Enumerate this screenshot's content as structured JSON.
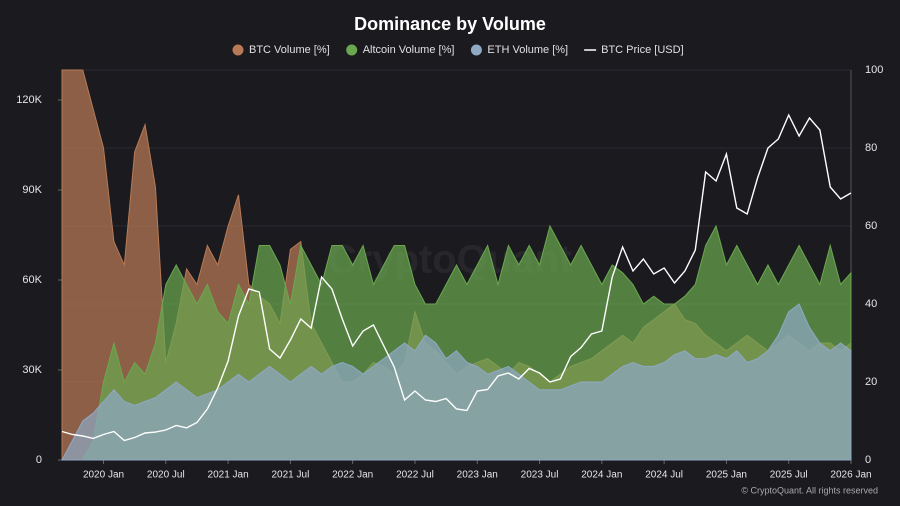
{
  "chart_data": {
    "type": "area",
    "title": "Dominance by Volume",
    "watermark": "CryptoQuant",
    "footer": "© CryptoQuant. All rights reserved",
    "x": [
      "2019-09",
      "2019-10",
      "2019-11",
      "2019-12",
      "2020-01",
      "2020-02",
      "2020-03",
      "2020-04",
      "2020-05",
      "2020-06",
      "2020-07",
      "2020-08",
      "2020-09",
      "2020-10",
      "2020-11",
      "2020-12",
      "2021-01",
      "2021-02",
      "2021-03",
      "2021-04",
      "2021-05",
      "2021-06",
      "2021-07",
      "2021-08",
      "2021-09",
      "2021-10",
      "2021-11",
      "2021-12",
      "2022-01",
      "2022-02",
      "2022-03",
      "2022-04",
      "2022-05",
      "2022-06",
      "2022-07",
      "2022-08",
      "2022-09",
      "2022-10",
      "2022-11",
      "2022-12",
      "2023-01",
      "2023-02",
      "2023-03",
      "2023-04",
      "2023-05",
      "2023-06",
      "2023-07",
      "2023-08",
      "2023-09",
      "2023-10",
      "2023-11",
      "2023-12",
      "2024-01",
      "2024-02",
      "2024-03",
      "2024-04",
      "2024-05",
      "2024-06",
      "2024-07",
      "2024-08",
      "2024-09",
      "2024-10",
      "2024-11",
      "2024-12",
      "2025-01",
      "2025-02",
      "2025-03",
      "2025-04",
      "2025-05",
      "2025-06",
      "2025-07",
      "2025-08",
      "2025-09",
      "2025-10",
      "2025-11",
      "2025-12",
      "2026-01"
    ],
    "xlim": [
      "2019-09",
      "2026-01"
    ],
    "xticks": [
      {
        "value": "2020-01",
        "label": "2020 Jan"
      },
      {
        "value": "2020-07",
        "label": "2020 Jul"
      },
      {
        "value": "2021-01",
        "label": "2021 Jan"
      },
      {
        "value": "2021-07",
        "label": "2021 Jul"
      },
      {
        "value": "2022-01",
        "label": "2022 Jan"
      },
      {
        "value": "2022-07",
        "label": "2022 Jul"
      },
      {
        "value": "2023-01",
        "label": "2023 Jan"
      },
      {
        "value": "2023-07",
        "label": "2023 Jul"
      },
      {
        "value": "2024-01",
        "label": "2024 Jan"
      },
      {
        "value": "2024-07",
        "label": "2024 Jul"
      },
      {
        "value": "2025-01",
        "label": "2025 Jan"
      },
      {
        "value": "2025-07",
        "label": "2025 Jul"
      },
      {
        "value": "2026-01",
        "label": "2026 Jan"
      }
    ],
    "ylim": [
      0,
      130000
    ],
    "yticks": [
      0,
      {
        "value": 30000,
        "label": "30K"
      },
      {
        "value": 60000,
        "label": "60K"
      },
      {
        "value": 90000,
        "label": "90K"
      },
      {
        "value": 120000,
        "label": "120K"
      }
    ],
    "y2lim": [
      0,
      100
    ],
    "y2ticks": [
      0,
      20,
      40,
      60,
      80,
      100
    ],
    "grid": true,
    "legend": "top",
    "series": [
      {
        "name": "BTC Volume [%]",
        "color": "#b87a56",
        "type": "area",
        "axis": "y2",
        "values": [
          100,
          100,
          100,
          90,
          80,
          56,
          50,
          79,
          86,
          70,
          25,
          35,
          49,
          45,
          55,
          50,
          60,
          68,
          45,
          42,
          40,
          35,
          54,
          56,
          35,
          30,
          25,
          20,
          20,
          22,
          25,
          24,
          22,
          25,
          38,
          30,
          28,
          25,
          22,
          24,
          25,
          26,
          24,
          22,
          25,
          24,
          22,
          20,
          22,
          24,
          25,
          26,
          28,
          30,
          32,
          30,
          34,
          36,
          38,
          40,
          36,
          35,
          32,
          30,
          28,
          30,
          32,
          30,
          28,
          30,
          32,
          30,
          28,
          30,
          30,
          28,
          30
        ]
      },
      {
        "name": "Altcoin Volume [%]",
        "color": "#6aa84f",
        "type": "area",
        "axis": "y2",
        "values": [
          0,
          0,
          0,
          5,
          20,
          30,
          20,
          25,
          22,
          30,
          45,
          50,
          45,
          40,
          45,
          38,
          35,
          45,
          40,
          55,
          55,
          50,
          40,
          55,
          50,
          45,
          55,
          55,
          50,
          55,
          45,
          50,
          55,
          55,
          45,
          40,
          40,
          45,
          50,
          45,
          50,
          55,
          45,
          55,
          50,
          55,
          50,
          60,
          55,
          50,
          55,
          50,
          45,
          50,
          48,
          45,
          40,
          42,
          40,
          40,
          42,
          45,
          55,
          60,
          50,
          55,
          50,
          45,
          50,
          45,
          50,
          55,
          50,
          45,
          55,
          45,
          48
        ]
      },
      {
        "name": "ETH Volume [%]",
        "color": "#8fa8c4",
        "type": "area",
        "axis": "y2",
        "values": [
          0,
          5,
          10,
          12,
          15,
          18,
          15,
          14,
          15,
          16,
          18,
          20,
          18,
          16,
          17,
          18,
          20,
          22,
          20,
          22,
          24,
          22,
          20,
          22,
          24,
          22,
          24,
          25,
          24,
          22,
          24,
          26,
          28,
          30,
          28,
          32,
          30,
          26,
          28,
          25,
          24,
          22,
          23,
          24,
          22,
          20,
          18,
          18,
          18,
          19,
          20,
          20,
          20,
          22,
          24,
          25,
          24,
          24,
          25,
          27,
          28,
          26,
          26,
          27,
          26,
          28,
          25,
          26,
          28,
          32,
          38,
          40,
          34,
          30,
          28,
          30,
          28
        ]
      },
      {
        "name": "BTC Price [USD]",
        "color": "#ffffff",
        "type": "line",
        "axis": "y",
        "values": [
          9500,
          8500,
          8000,
          7200,
          8500,
          9500,
          6500,
          7500,
          9000,
          9300,
          10000,
          11500,
          10700,
          12500,
          17000,
          24000,
          33000,
          48000,
          57000,
          56000,
          37000,
          34000,
          40000,
          47000,
          44000,
          61000,
          57000,
          47000,
          38000,
          43000,
          45000,
          38000,
          31000,
          20000,
          23000,
          20000,
          19500,
          20500,
          17000,
          16500,
          23000,
          23500,
          28000,
          29000,
          27000,
          30500,
          29000,
          26000,
          27000,
          34500,
          37500,
          42000,
          43000,
          61000,
          71000,
          63000,
          67000,
          62000,
          64000,
          59000,
          63000,
          70000,
          96000,
          93000,
          102000,
          84000,
          82000,
          94000,
          104000,
          107000,
          115000,
          108000,
          114000,
          110000,
          91000,
          87000,
          89000
        ]
      }
    ]
  }
}
